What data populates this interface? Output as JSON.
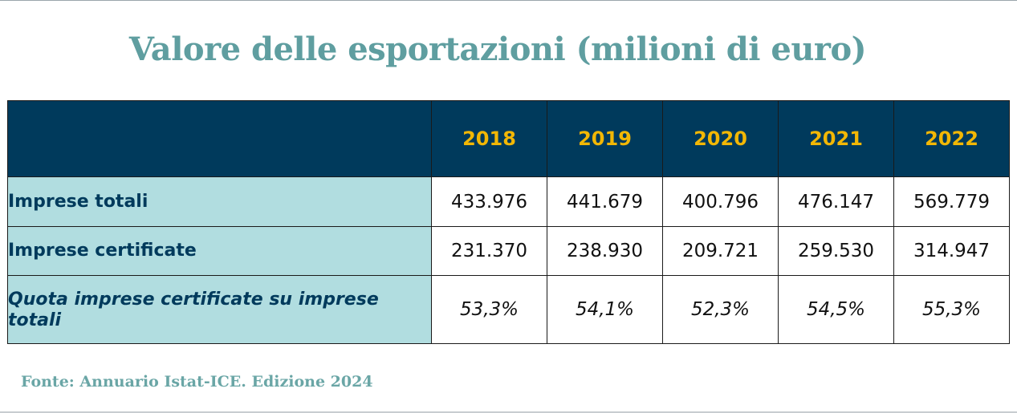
{
  "title": "Valore delle esportazioni (milioni di euro)",
  "table": {
    "years": [
      "2018",
      "2019",
      "2020",
      "2021",
      "2022"
    ],
    "rows": [
      {
        "label": "Imprese totali",
        "values": [
          "433.976",
          "441.679",
          "400.796",
          "476.147",
          "569.779"
        ]
      },
      {
        "label": "Imprese certificate",
        "values": [
          "231.370",
          "238.930",
          "209.721",
          "259.530",
          "314.947"
        ]
      },
      {
        "label": "Quota imprese certificate su imprese totali",
        "values": [
          "53,3%",
          "54,1%",
          "52,3%",
          "54,5%",
          "55,3%"
        ]
      }
    ]
  },
  "source": "Fonte: Annuario Istat-ICE. Edizione 2024",
  "colors": {
    "title": "#5f9ea0",
    "header_bg": "#003a5c",
    "header_text": "#f2b705",
    "label_bg": "#b1dde0",
    "label_text": "#003a5c",
    "source": "#6aa6a6"
  }
}
